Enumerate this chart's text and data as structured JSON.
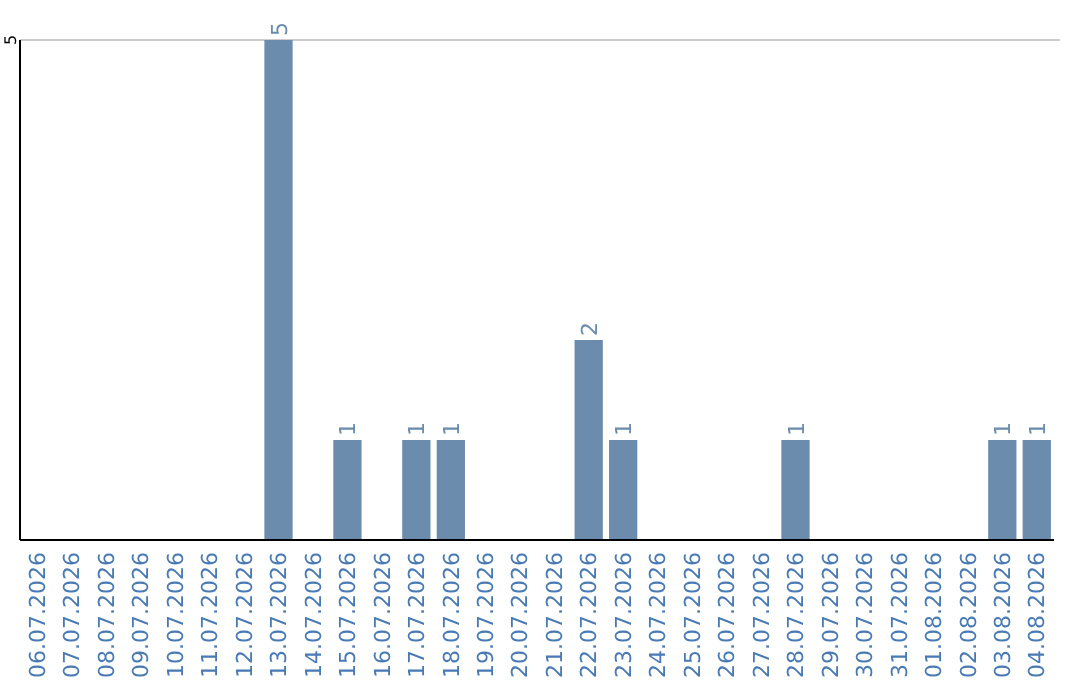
{
  "chart_data": {
    "type": "bar",
    "categories": [
      "06.07.2026",
      "07.07.2026",
      "08.07.2026",
      "09.07.2026",
      "10.07.2026",
      "11.07.2026",
      "12.07.2026",
      "13.07.2026",
      "14.07.2026",
      "15.07.2026",
      "16.07.2026",
      "17.07.2026",
      "18.07.2026",
      "19.07.2026",
      "20.07.2026",
      "21.07.2026",
      "22.07.2026",
      "23.07.2026",
      "24.07.2026",
      "25.07.2026",
      "26.07.2026",
      "27.07.2026",
      "28.07.2026",
      "29.07.2026",
      "30.07.2026",
      "31.07.2026",
      "01.08.2026",
      "02.08.2026",
      "03.08.2026",
      "04.08.2026"
    ],
    "values": [
      0,
      0,
      0,
      0,
      0,
      0,
      0,
      5,
      0,
      1,
      0,
      1,
      1,
      0,
      0,
      0,
      2,
      1,
      0,
      0,
      0,
      0,
      1,
      0,
      0,
      0,
      0,
      0,
      1,
      1
    ],
    "value_labels": [
      null,
      null,
      null,
      null,
      null,
      null,
      null,
      "5",
      null,
      "1",
      null,
      "1",
      "1",
      null,
      null,
      null,
      "2",
      "1",
      null,
      null,
      null,
      null,
      "1",
      null,
      null,
      null,
      null,
      null,
      "1",
      "1"
    ],
    "color": "#6b8cac",
    "ylim": [
      0,
      5
    ],
    "yticks": [
      5
    ]
  }
}
